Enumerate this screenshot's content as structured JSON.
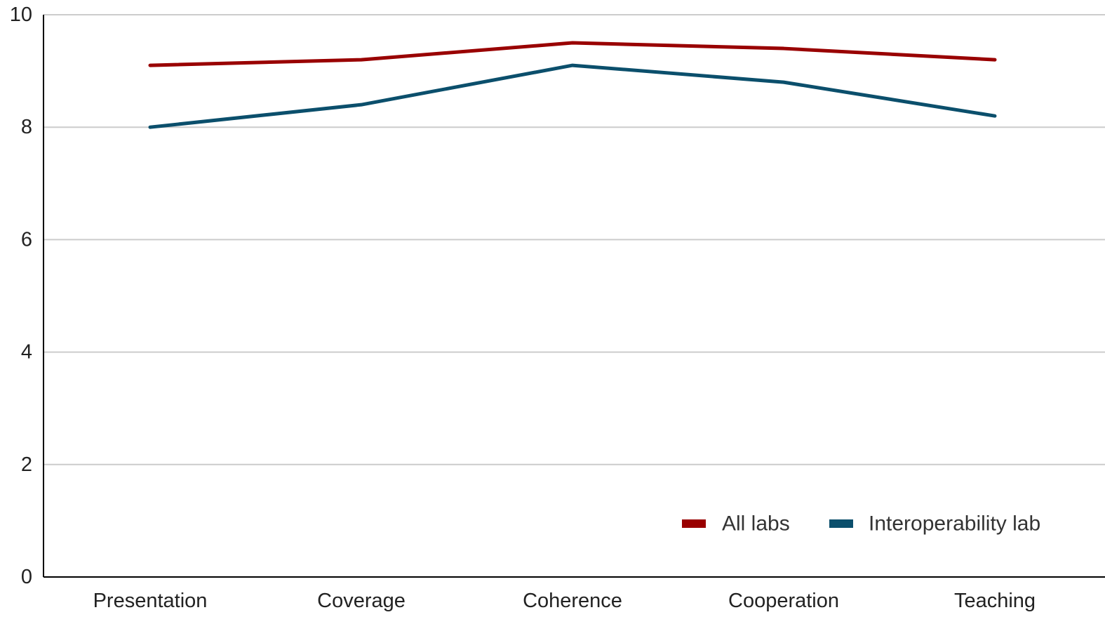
{
  "chart_data": {
    "type": "line",
    "title": "",
    "xlabel": "",
    "ylabel": "",
    "categories": [
      "Presentation",
      "Coverage",
      "Coherence",
      "Cooperation",
      "Teaching"
    ],
    "ylim": [
      0,
      10
    ],
    "yticks": [
      0,
      2,
      4,
      6,
      8,
      10
    ],
    "grid": true,
    "legend_position": "bottom-right",
    "series": [
      {
        "name": "All labs",
        "color": "#990000",
        "values": [
          9.1,
          9.2,
          9.5,
          9.4,
          9.2
        ]
      },
      {
        "name": "Interoperability lab",
        "color": "#0b4f6c",
        "values": [
          8.0,
          8.4,
          9.1,
          8.8,
          8.2
        ]
      }
    ]
  }
}
